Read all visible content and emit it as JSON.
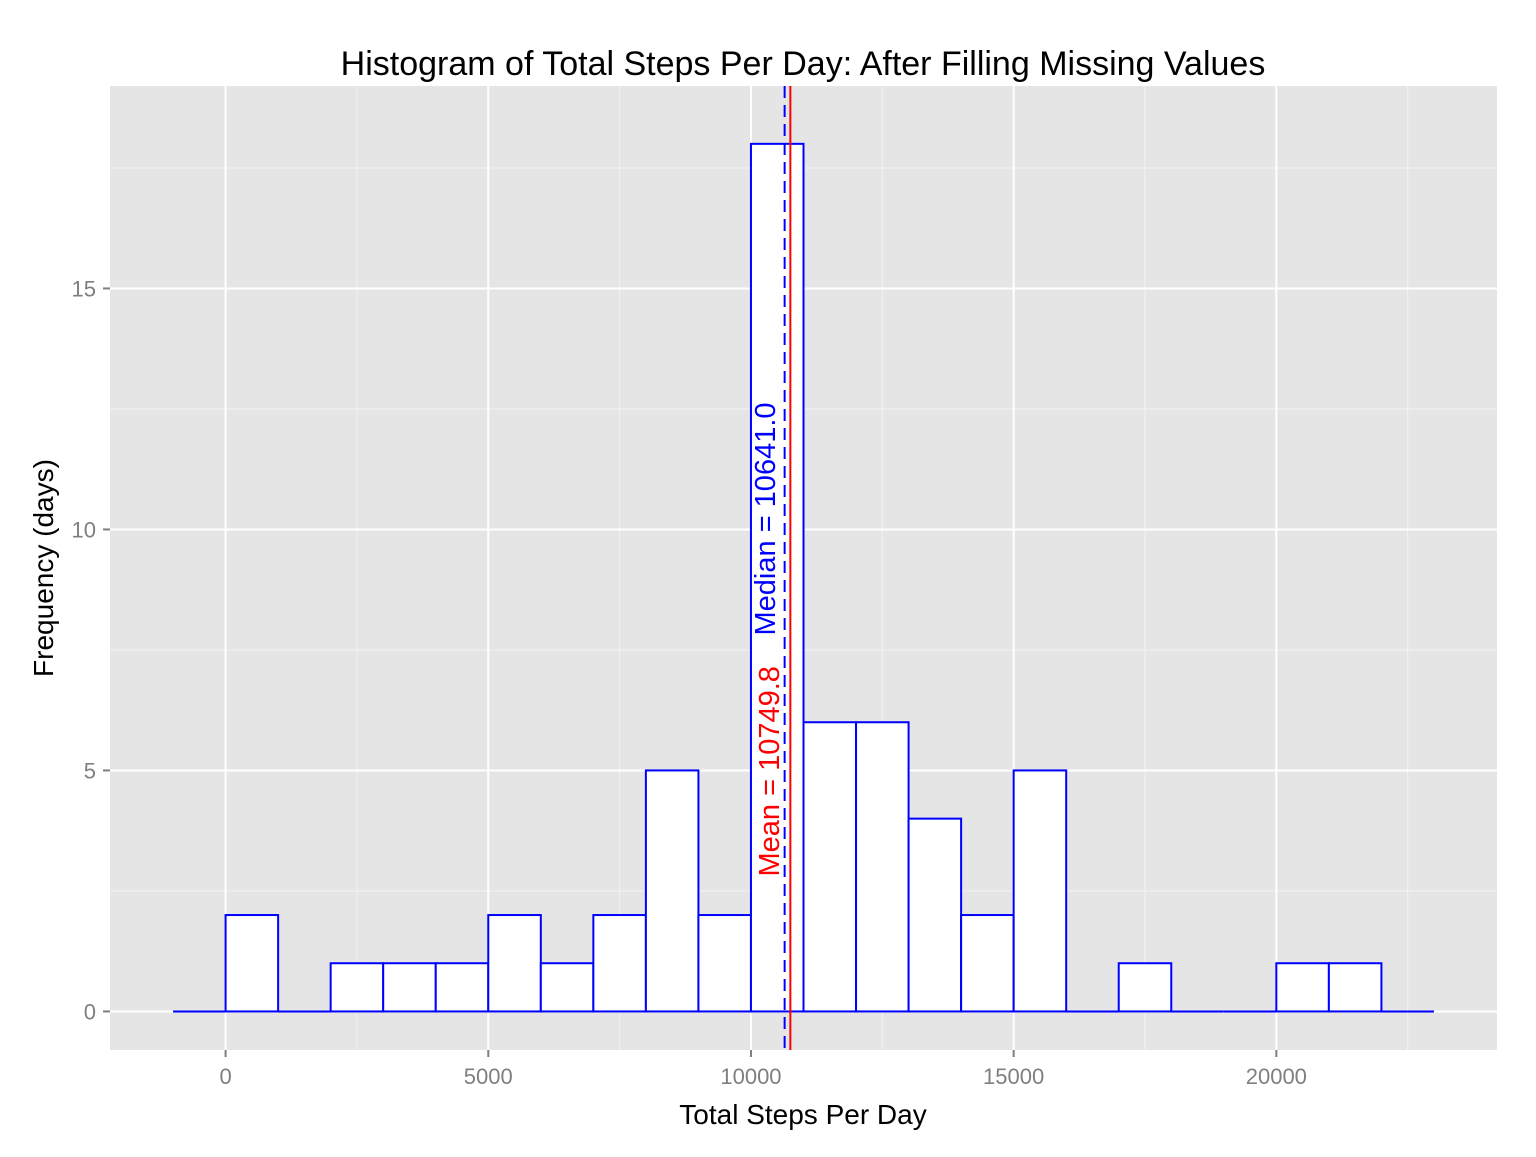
{
  "chart_data": {
    "type": "bar",
    "title": "Histogram of Total Steps Per Day: After Filling Missing Values",
    "xlabel": "Total Steps Per Day",
    "ylabel": "Frequency (days)",
    "xlim": [
      -2200,
      24200
    ],
    "ylim": [
      -0.8,
      19.2
    ],
    "x_ticks": [
      0,
      5000,
      10000,
      15000,
      20000
    ],
    "x_tick_labels": [
      "0",
      "5000",
      "10000",
      "15000",
      "20000"
    ],
    "y_ticks": [
      0,
      5,
      10,
      15
    ],
    "y_tick_labels": [
      "0",
      "5",
      "10",
      "15"
    ],
    "bin_width": 1000,
    "bins": [
      {
        "start": -1000,
        "end": 0,
        "count": 0
      },
      {
        "start": 0,
        "end": 1000,
        "count": 2
      },
      {
        "start": 1000,
        "end": 2000,
        "count": 0
      },
      {
        "start": 2000,
        "end": 3000,
        "count": 1
      },
      {
        "start": 3000,
        "end": 4000,
        "count": 1
      },
      {
        "start": 4000,
        "end": 5000,
        "count": 1
      },
      {
        "start": 5000,
        "end": 6000,
        "count": 2
      },
      {
        "start": 6000,
        "end": 7000,
        "count": 1
      },
      {
        "start": 7000,
        "end": 8000,
        "count": 2
      },
      {
        "start": 8000,
        "end": 9000,
        "count": 5
      },
      {
        "start": 9000,
        "end": 10000,
        "count": 2
      },
      {
        "start": 10000,
        "end": 11000,
        "count": 18
      },
      {
        "start": 11000,
        "end": 12000,
        "count": 6
      },
      {
        "start": 12000,
        "end": 13000,
        "count": 6
      },
      {
        "start": 13000,
        "end": 14000,
        "count": 4
      },
      {
        "start": 14000,
        "end": 15000,
        "count": 2
      },
      {
        "start": 15000,
        "end": 16000,
        "count": 5
      },
      {
        "start": 16000,
        "end": 17000,
        "count": 0
      },
      {
        "start": 17000,
        "end": 18000,
        "count": 1
      },
      {
        "start": 18000,
        "end": 19000,
        "count": 0
      },
      {
        "start": 19000,
        "end": 20000,
        "count": 0
      },
      {
        "start": 20000,
        "end": 21000,
        "count": 1
      },
      {
        "start": 21000,
        "end": 22000,
        "count": 1
      },
      {
        "start": 22000,
        "end": 23000,
        "count": 0
      }
    ],
    "mean": {
      "value": 10749.8,
      "label": "Mean = 10749.8",
      "color": "#ff0000",
      "line_style": "solid"
    },
    "median": {
      "value": 10641.0,
      "label": "Median = 10641.0",
      "color": "#0000ff",
      "line_style": "dashed"
    },
    "bar_fill": "#ffffff",
    "bar_outline": "#0000ff",
    "panel_background": "#e5e5e5",
    "grid": true,
    "legend": "none"
  }
}
